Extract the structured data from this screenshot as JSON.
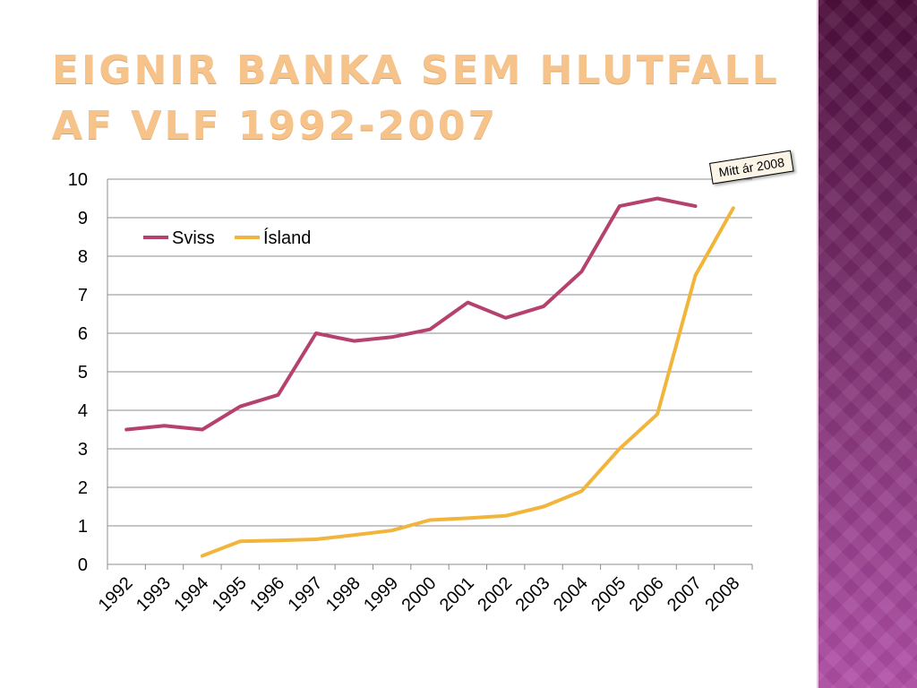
{
  "slide": {
    "title": "EIGNIR BANKA SEM HLUTFALL AF VLF 1992-2007"
  },
  "annotation": {
    "text": "Mitt ár 2008"
  },
  "colors": {
    "sviss": "#b5426e",
    "island": "#f2b53c",
    "gridline": "#8c8c8c",
    "axis": "#8c8c8c",
    "title": "#f6c38a"
  },
  "chart_data": {
    "type": "line",
    "title": "",
    "xlabel": "",
    "ylabel": "",
    "categories": [
      "1992",
      "1993",
      "1994",
      "1995",
      "1996",
      "1997",
      "1998",
      "1999",
      "2000",
      "2001",
      "2002",
      "2003",
      "2004",
      "2005",
      "2006",
      "2007",
      "2008"
    ],
    "yticks": [
      "0",
      "1",
      "2",
      "3",
      "4",
      "5",
      "6",
      "7",
      "8",
      "9",
      "10"
    ],
    "ylim": [
      0,
      10
    ],
    "grid": true,
    "legend": "top-left",
    "series": [
      {
        "name": "Sviss",
        "color": "#b5426e",
        "values": [
          3.5,
          3.6,
          3.5,
          4.1,
          4.4,
          6.0,
          5.8,
          5.9,
          6.1,
          6.8,
          6.4,
          6.7,
          7.6,
          9.3,
          9.5,
          9.3,
          null
        ]
      },
      {
        "name": "Ísland",
        "color": "#f2b53c",
        "values": [
          null,
          null,
          0.22,
          0.6,
          0.62,
          0.65,
          0.76,
          0.88,
          1.15,
          1.2,
          1.26,
          1.5,
          1.9,
          3.0,
          3.9,
          7.5,
          9.25
        ]
      }
    ]
  }
}
